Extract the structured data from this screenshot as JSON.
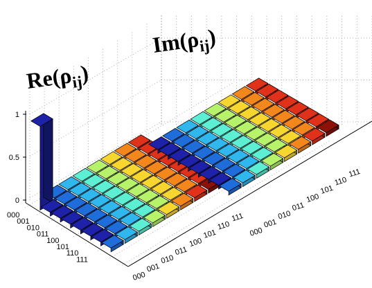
{
  "chart_data": {
    "type": "bar3d",
    "panels": [
      {
        "id": "re",
        "title_main": "Re(ρ",
        "title_sub": "ij",
        "title_close": ")",
        "zlim": [
          0,
          1
        ],
        "ztick_labels": [
          "0",
          "0.5",
          "1"
        ],
        "ztick_values": [
          0,
          0.5,
          1
        ],
        "row_labels": [
          "000",
          "001",
          "010",
          "011",
          "100",
          "101",
          "110",
          "111"
        ],
        "col_labels": [
          "000",
          "001",
          "010",
          "011",
          "100",
          "101",
          "110",
          "111"
        ],
        "values": [
          [
            1.0,
            0.02,
            0.01,
            0,
            0,
            0,
            0,
            0
          ],
          [
            0.02,
            0.02,
            0.03,
            0,
            0,
            0,
            0,
            0
          ],
          [
            0.01,
            0.03,
            0.02,
            0,
            0,
            0,
            0,
            0
          ],
          [
            0,
            0,
            0,
            0,
            0,
            0,
            0,
            0
          ],
          [
            0,
            0,
            0,
            0,
            0,
            0,
            0,
            0
          ],
          [
            0,
            0,
            0,
            0,
            0,
            0,
            0,
            0
          ],
          [
            0,
            0,
            0,
            0,
            0,
            0,
            0,
            0
          ],
          [
            0,
            0,
            0,
            0,
            0,
            0,
            0,
            0
          ]
        ]
      },
      {
        "id": "im",
        "title_main": "Im(ρ",
        "title_sub": "ij",
        "title_close": ")",
        "row_labels": [],
        "col_labels": [
          "000",
          "001",
          "010",
          "011",
          "100",
          "101",
          "110",
          "111"
        ],
        "values": [
          [
            0,
            0,
            0,
            0,
            0,
            0,
            0,
            0
          ],
          [
            0,
            0,
            0,
            0,
            0,
            0,
            0,
            0
          ],
          [
            0,
            0,
            0,
            0,
            0,
            0,
            0,
            0
          ],
          [
            0,
            0,
            0,
            0,
            0,
            0,
            0,
            0
          ],
          [
            0,
            0,
            0,
            0,
            0,
            0,
            0,
            0
          ],
          [
            0,
            0,
            0,
            0,
            0,
            0,
            0,
            0
          ],
          [
            0,
            0,
            0,
            0,
            0,
            0,
            0,
            0
          ],
          [
            0,
            0,
            0,
            0,
            0,
            0,
            0,
            0
          ]
        ]
      }
    ],
    "colormap": [
      "#1e22a8",
      "#1f6ddb",
      "#2fb7ee",
      "#5cefd4",
      "#b7f36a",
      "#f7d630",
      "#f4871c",
      "#e0321a",
      "#8c1208"
    ],
    "grid": true
  }
}
